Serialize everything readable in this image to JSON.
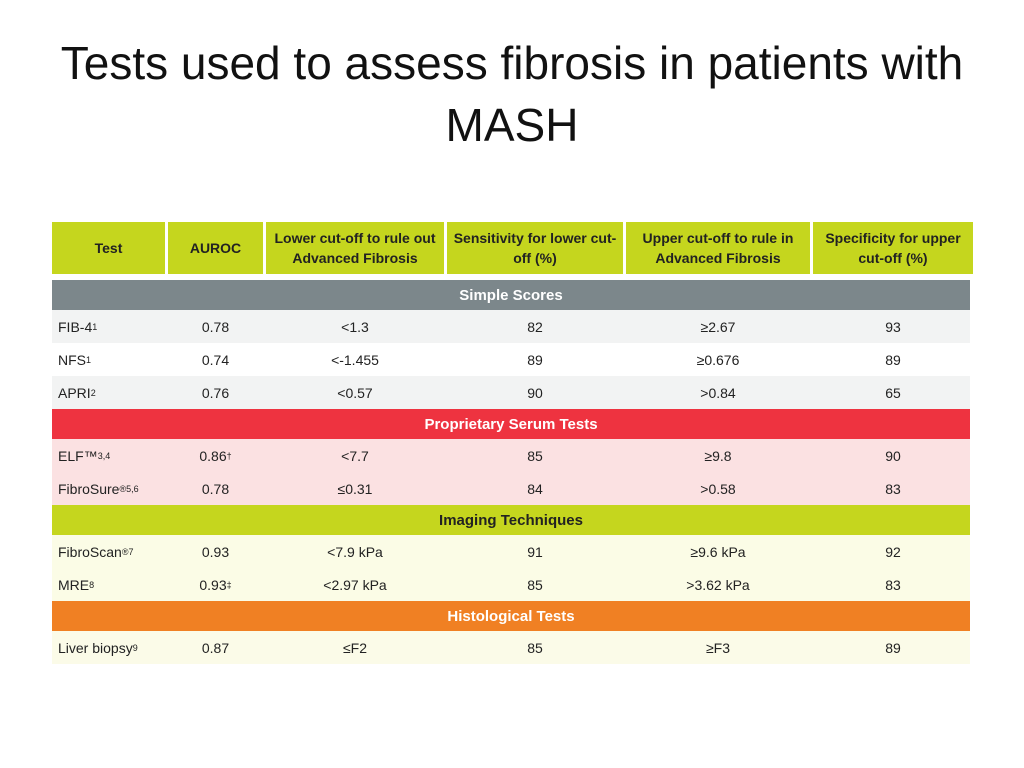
{
  "title": "Tests used to assess fibrosis in patients with MASH",
  "table": {
    "headers": [
      "Test",
      "AUROC",
      "Lower cut-off to rule out Advanced Fibrosis",
      "Sensitivity for lower cut-off (%)",
      "Upper cut-off to rule in Advanced Fibrosis",
      "Specificity for upper cut-off (%)"
    ],
    "sections": [
      {
        "label": "Simple Scores",
        "rows": [
          [
            {
              "text": "FIB-4",
              "sup": "1"
            },
            "0.78",
            "<1.3",
            "82",
            "≥2.67",
            "93"
          ],
          [
            {
              "text": "NFS",
              "sup": "1"
            },
            "0.74",
            "<-1.455",
            "89",
            "≥0.676",
            "89"
          ],
          [
            {
              "text": "APRI",
              "sup": "2"
            },
            "0.76",
            "<0.57",
            "90",
            ">0.84",
            "65"
          ]
        ]
      },
      {
        "label": "Proprietary Serum Tests",
        "rows": [
          [
            {
              "text": "ELF™",
              "sup": "3,4"
            },
            {
              "text": "0.86",
              "sup": "†"
            },
            "<7.7",
            "85",
            "≥9.8",
            "90"
          ],
          [
            {
              "text": "FibroSure",
              "sup": "®5,6"
            },
            "0.78",
            "≤0.31",
            "84",
            ">0.58",
            "83"
          ]
        ]
      },
      {
        "label": "Imaging Techniques",
        "rows": [
          [
            {
              "text": "FibroScan",
              "sup": "®7"
            },
            "0.93",
            "<7.9 kPa",
            "91",
            "≥9.6 kPa",
            "92"
          ],
          [
            {
              "text": "MRE",
              "sup": "8"
            },
            {
              "text": "0.93",
              "sup": "‡"
            },
            "<2.97 kPa",
            "85",
            ">3.62 kPa",
            "83"
          ]
        ]
      },
      {
        "label": "Histological Tests",
        "rows": [
          [
            {
              "text": "Liver biopsy",
              "sup": "9"
            },
            "0.87",
            "≤F2",
            "85",
            "≥F3",
            "89"
          ]
        ]
      }
    ]
  }
}
